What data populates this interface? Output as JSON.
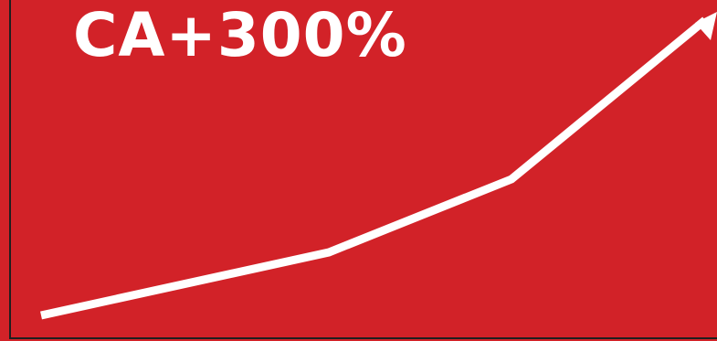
{
  "headline": {
    "text": "CA+300%"
  },
  "colors": {
    "background": "#d22228",
    "foreground": "#ffffff",
    "axis": "#1f1f1f"
  },
  "graphic": {
    "type": "rising-trend-arrow",
    "icon": "trend-arrow-icon"
  }
}
